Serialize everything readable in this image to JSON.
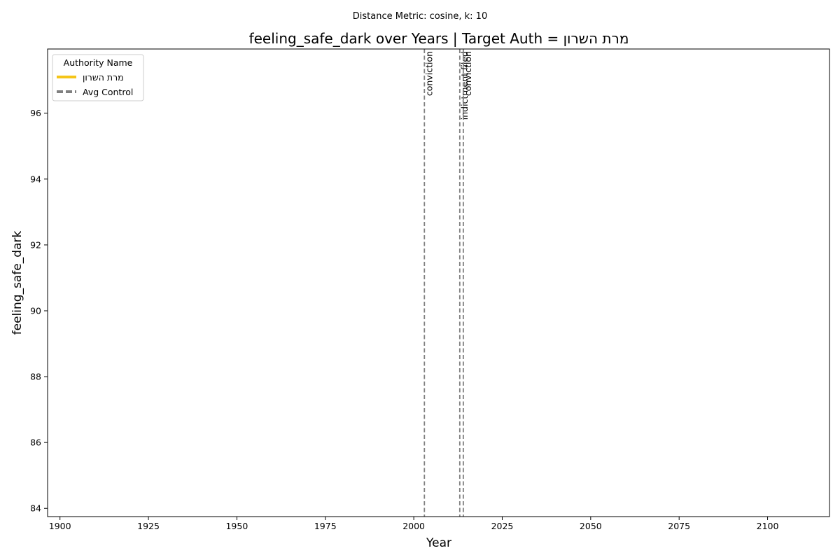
{
  "chart_data": {
    "type": "line",
    "suptitle": "Distance Metric: cosine, k: 10",
    "title": "feeling_safe_dark over Years | Target Auth = מרת השרון",
    "xlabel": "Year",
    "ylabel": "feeling_safe_dark",
    "xlim": [
      1896.5,
      2117.5
    ],
    "ylim": [
      83.75,
      97.95
    ],
    "x_ticks": [
      1900,
      1925,
      1950,
      1975,
      2000,
      2025,
      2050,
      2075,
      2100
    ],
    "y_ticks": [
      84,
      86,
      88,
      90,
      92,
      94,
      96
    ],
    "grid": false,
    "series": [
      {
        "name": "מרת השרון",
        "color": "#f5c518",
        "style": "solid",
        "x": [],
        "y": []
      },
      {
        "name": "Avg Control",
        "color": "#808080",
        "style": "dashed",
        "x": [],
        "y": []
      }
    ],
    "events": [
      {
        "x": 2003,
        "label": "conviction"
      },
      {
        "x": 2013,
        "label": "indictment filed"
      },
      {
        "x": 2014,
        "label": "conviction"
      }
    ],
    "event_line_color": "#808080",
    "legend": {
      "title": "Authority Name",
      "placement": "top-left",
      "entries": [
        "מרת השרון",
        "Avg Control"
      ]
    }
  }
}
